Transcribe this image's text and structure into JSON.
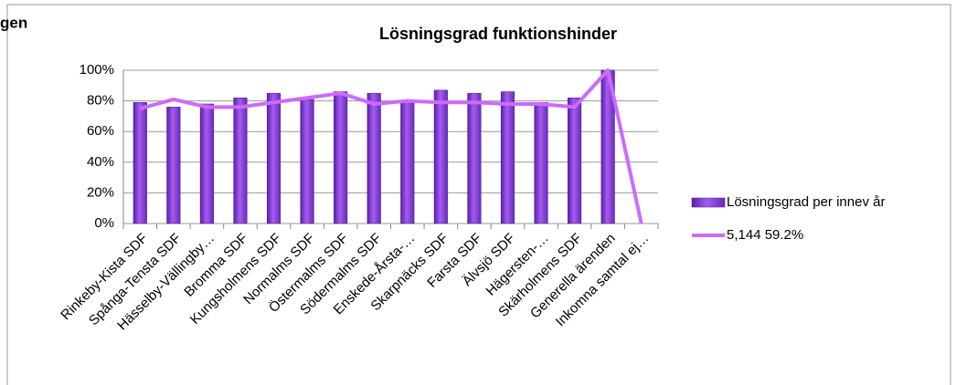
{
  "chart_data": {
    "type": "bar",
    "corner_text": "gen",
    "title": "Lösningsgrad funktionshinder",
    "categories": [
      "Rinkeby-Kista SDF",
      "Spånga-Tensta SDF",
      "Hässelby-Vällingby…",
      "Bromma SDF",
      "Kungsholmens SDF",
      "Normalms SDF",
      "Östermalms SDF",
      "Södermalms SDF",
      "Enskede-Årsta-…",
      "Skarpnäcks SDF",
      "Farsta SDF",
      "Älvsjö SDF",
      "Hägersten-…",
      "Skärholmens SDF",
      "Generella ärenden",
      "Inkomna samtal ej…"
    ],
    "series": [
      {
        "name": "Lösningsgrad per innev år",
        "type": "bar",
        "color": "#8a3fd8",
        "values": [
          79,
          76,
          78,
          82,
          85,
          81,
          86,
          85,
          80,
          87,
          85,
          86,
          79,
          82,
          100,
          null
        ]
      },
      {
        "name": "5,144 59.2%",
        "type": "line",
        "color": "#cc6bff",
        "values": [
          75,
          81,
          76,
          76,
          79,
          82,
          85,
          78,
          80,
          79,
          79,
          78,
          78,
          76,
          100,
          0
        ]
      }
    ],
    "ylim": [
      0,
      100
    ],
    "yticks": [
      {
        "value": 0,
        "label": "0%"
      },
      {
        "value": 20,
        "label": "20%"
      },
      {
        "value": 40,
        "label": "40%"
      },
      {
        "value": 60,
        "label": "60%"
      },
      {
        "value": 80,
        "label": "80%"
      },
      {
        "value": 100,
        "label": "100%"
      }
    ],
    "grid": true,
    "legend": "right"
  }
}
